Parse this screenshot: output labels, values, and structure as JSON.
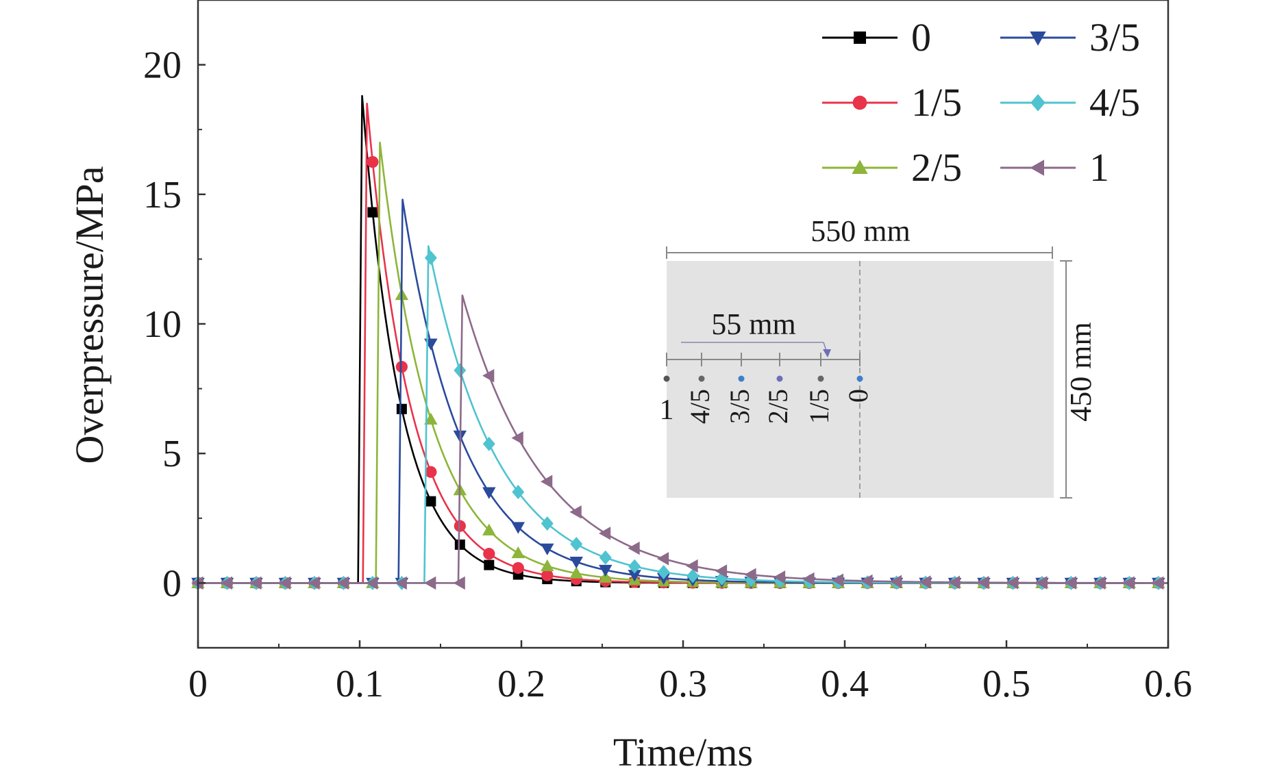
{
  "chart_data": {
    "type": "line",
    "title": "",
    "xlabel": "Time/ms",
    "ylabel": "Overpressure/MPa",
    "xlim": [
      0,
      0.6
    ],
    "ylim": [
      -2.5,
      22.5
    ],
    "xticks": [
      "0",
      "0.1",
      "0.2",
      "0.3",
      "0.4",
      "0.5",
      "0.6"
    ],
    "yticks": [
      "0",
      "5",
      "10",
      "15",
      "20"
    ],
    "legend_position": "top-right",
    "series": [
      {
        "name": "0",
        "color": "#000000",
        "marker": "square",
        "arrival": 0.099,
        "peak": 18.8,
        "decay": 0.0238
      },
      {
        "name": "1/5",
        "color": "#e8334a",
        "marker": "circle",
        "arrival": 0.102,
        "peak": 18.5,
        "decay": 0.027
      },
      {
        "name": "2/5",
        "color": "#8db53a",
        "marker": "triangle-up",
        "arrival": 0.11,
        "peak": 17.0,
        "decay": 0.0318
      },
      {
        "name": "3/5",
        "color": "#2a4a9c",
        "marker": "triangle-down",
        "arrival": 0.124,
        "peak": 14.8,
        "decay": 0.0371
      },
      {
        "name": "4/5",
        "color": "#4fc3cf",
        "marker": "diamond",
        "arrival": 0.14,
        "peak": 13.0,
        "decay": 0.0424
      },
      {
        "name": "1",
        "color": "#8c6a8a",
        "marker": "triangle-left",
        "arrival": 0.161,
        "peak": 11.1,
        "decay": 0.0504
      }
    ],
    "inset": {
      "width_label": "550 mm",
      "height_label": "450 mm",
      "spacing_label": "55 mm",
      "gauge_labels": [
        "1",
        "4/5",
        "3/5",
        "2/5",
        "1/5",
        "0"
      ],
      "gauge_colors": [
        "#555555",
        "#666666",
        "#3d7fc8",
        "#6e6eb8",
        "#666666",
        "#3d7fc8"
      ],
      "panel_color": "#e3e3e3"
    }
  }
}
